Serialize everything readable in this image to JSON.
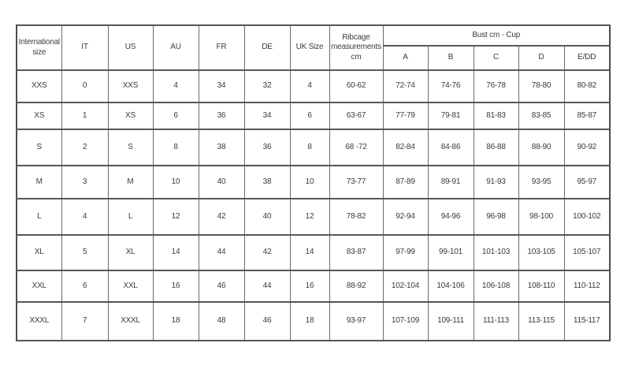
{
  "colors": {
    "background": "#ffffff",
    "border_outer": "#4c4c4c",
    "border_inner": "#6a6a6a",
    "text": "#3b3b3b"
  },
  "table": {
    "headers": {
      "international": "International size",
      "it": "IT",
      "us": "US",
      "au": "AU",
      "fr": "FR",
      "de": "DE",
      "uk": "UK Size",
      "ribcage": "Ribcage measurements cm",
      "bust_group": "Bust cm - Cup",
      "cups": [
        "A",
        "B",
        "C",
        "D",
        "E/DD"
      ]
    },
    "rows": [
      [
        "XXS",
        "0",
        "XXS",
        "4",
        "34",
        "32",
        "4",
        "60-62",
        "72-74",
        "74-76",
        "76-78",
        "78-80",
        "80-82"
      ],
      [
        "XS",
        "1",
        "XS",
        "6",
        "36",
        "34",
        "6",
        "63-67",
        "77-79",
        "79-81",
        "81-83",
        "83-85",
        "85-87"
      ],
      [
        "S",
        "2",
        "S",
        "8",
        "38",
        "36",
        "8",
        "68 -72",
        "82-84",
        "84-86",
        "86-88",
        "88-90",
        "90-92"
      ],
      [
        "M",
        "3",
        "M",
        "10",
        "40",
        "38",
        "10",
        "73-77",
        "87-89",
        "89-91",
        "91-93",
        "93-95",
        "95-97"
      ],
      [
        "L",
        "4",
        "L",
        "12",
        "42",
        "40",
        "12",
        "78-82",
        "92-94",
        "94-96",
        "96-98",
        "98-100",
        "100-102"
      ],
      [
        "XL",
        "5",
        "XL",
        "14",
        "44",
        "42",
        "14",
        "83-87",
        "97-99",
        "99-101",
        "101-103",
        "103-105",
        "105-107"
      ],
      [
        "XXL",
        "6",
        "XXL",
        "16",
        "46",
        "44",
        "16",
        "88-92",
        "102-104",
        "104-106",
        "106-108",
        "108-110",
        "110-112"
      ],
      [
        "XXXL",
        "7",
        "XXXL",
        "18",
        "48",
        "46",
        "18",
        "93-97",
        "107-109",
        "109-111",
        "111-113",
        "113-115",
        "115-117"
      ]
    ]
  }
}
